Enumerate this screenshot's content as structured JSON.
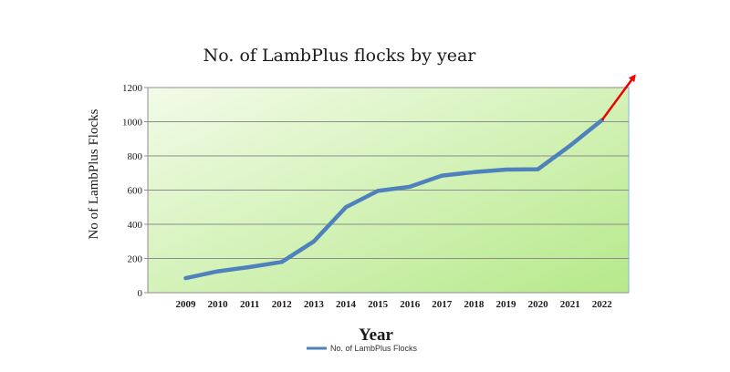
{
  "chart_data": {
    "type": "line",
    "title": "No. of LambPlus flocks by year",
    "xlabel": "Year",
    "ylabel": "No of LambPlus Flocks",
    "categories": [
      "2009",
      "2010",
      "2011",
      "2012",
      "2013",
      "2014",
      "2015",
      "2016",
      "2017",
      "2018",
      "2019",
      "2020",
      "2021",
      "2022"
    ],
    "series": [
      {
        "name": "No. of LambPlus Flocks",
        "values": [
          85,
          125,
          150,
          180,
          300,
          500,
          595,
          620,
          685,
          705,
          720,
          722,
          860,
          1010
        ],
        "color": "#4f81bd"
      }
    ],
    "ylim": [
      0,
      1200
    ],
    "yticks": [
      0,
      200,
      400,
      600,
      800,
      1000,
      1200
    ],
    "grid": true,
    "legend": "bottom",
    "plot_background": [
      "#f2fbe8",
      "#b6e98a"
    ],
    "trend_arrow": {
      "from": {
        "x": "2022",
        "y": 1010
      },
      "to_y": 1265,
      "color": "#ee0000"
    }
  }
}
